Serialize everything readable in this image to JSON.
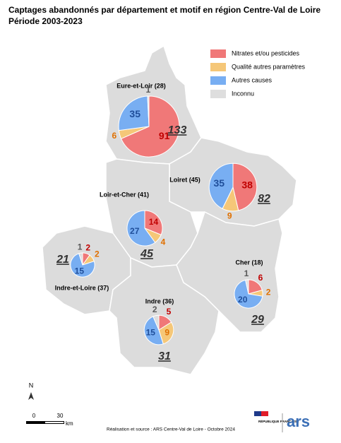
{
  "header": {
    "title": "Captages abandonnés par département et motif en région Centre-Val de Loire",
    "subtitle": "Période 2003-2023"
  },
  "legend": [
    {
      "label": "Nitrates et/ou pesticides",
      "color": "#f07878"
    },
    {
      "label": "Qualité autres paramètres",
      "color": "#f5c778"
    },
    {
      "label": "Autres causes",
      "color": "#78aef2"
    },
    {
      "label": "Inconnu",
      "color": "#dedede"
    }
  ],
  "label_colors": [
    "#c00000",
    "#e07000",
    "#1f4e9a",
    "#595959"
  ],
  "departments": [
    {
      "name": "Eure-et-Loir (28)",
      "total": 133,
      "values": [
        91,
        6,
        35,
        1
      ]
    },
    {
      "name": "Loiret (45)",
      "total": 82,
      "values": [
        38,
        9,
        35,
        null
      ]
    },
    {
      "name": "Loir-et-Cher (41)",
      "total": 45,
      "values": [
        14,
        4,
        27,
        null
      ]
    },
    {
      "name": "Indre-et-Loire (37)",
      "total": 21,
      "values": [
        2,
        2,
        15,
        1
      ]
    },
    {
      "name": "Cher (18)",
      "total": 29,
      "values": [
        6,
        2,
        20,
        1
      ]
    },
    {
      "name": "Indre (36)",
      "total": 31,
      "values": [
        5,
        9,
        15,
        2
      ]
    }
  ],
  "scale": {
    "start": "0",
    "end": "30",
    "unit": "km"
  },
  "north": "N",
  "footer": {
    "source": "Réalisation et source : ARS Centre-Val de Loire - Octobre 2024",
    "republic": "RÉPUBLIQUE FRANÇAISE",
    "ars": "ars"
  }
}
